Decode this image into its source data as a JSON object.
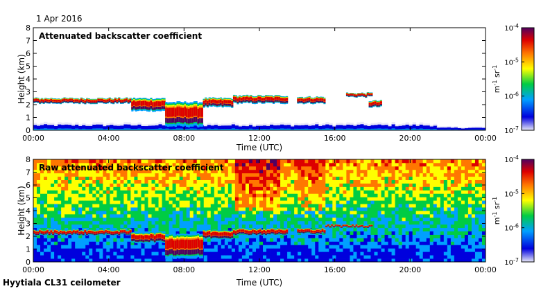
{
  "header": {
    "date": "1 Apr 2016",
    "site": "Hyytiala CL31 ceilometer"
  },
  "colorbar": {
    "tick_labels": [
      "10-4",
      "10-5",
      "10-6",
      "10-7"
    ],
    "tick_base": "10",
    "tick_exponents": [
      "-4",
      "-5",
      "-6",
      "-7"
    ],
    "unit_label": "m-1 sr-1",
    "colors": [
      "#e8e8f8",
      "#0000dd",
      "#00a0ff",
      "#00cc44",
      "#ffff00",
      "#ff7700",
      "#dd0000",
      "#500060"
    ]
  },
  "chart_data": [
    {
      "type": "heatmap",
      "title": "Attenuated backscatter coefficient",
      "xlabel": "Time (UTC)",
      "ylabel": "Height (km)",
      "x_ticks": [
        "00:00",
        "04:00",
        "08:00",
        "12:00",
        "16:00",
        "20:00",
        "00:00"
      ],
      "y_ticks": [
        "0",
        "1",
        "2",
        "3",
        "4",
        "5",
        "6",
        "7",
        "8"
      ],
      "xlim": [
        0,
        24
      ],
      "ylim": [
        0,
        8
      ],
      "color_scale": "log",
      "clim": [
        1e-07,
        0.0001
      ],
      "cloud_layers": [
        {
          "t_start": 0.0,
          "t_end": 5.2,
          "base_km": 2.1,
          "top_km": 2.5
        },
        {
          "t_start": 5.2,
          "t_end": 7.0,
          "base_km": 1.5,
          "top_km": 2.5
        },
        {
          "t_start": 7.0,
          "t_end": 9.0,
          "base_km": 0.3,
          "top_km": 2.2
        },
        {
          "t_start": 9.0,
          "t_end": 10.6,
          "base_km": 1.8,
          "top_km": 2.5
        },
        {
          "t_start": 10.6,
          "t_end": 13.5,
          "base_km": 2.1,
          "top_km": 2.7
        },
        {
          "t_start": 14.0,
          "t_end": 15.5,
          "base_km": 2.1,
          "top_km": 2.6
        },
        {
          "t_start": 16.6,
          "t_end": 18.0,
          "base_km": 2.6,
          "top_km": 2.9
        },
        {
          "t_start": 17.8,
          "t_end": 18.5,
          "base_km": 1.8,
          "top_km": 2.3
        }
      ],
      "boundary_layer_top_km": 0.6
    },
    {
      "type": "heatmap",
      "title": "Raw attenuated backscatter coefficient",
      "xlabel": "Time (UTC)",
      "ylabel": "Height (km)",
      "x_ticks": [
        "00:00",
        "04:00",
        "08:00",
        "12:00",
        "16:00",
        "20:00",
        "00:00"
      ],
      "y_ticks": [
        "0",
        "1",
        "2",
        "3",
        "4",
        "5",
        "6",
        "7",
        "8"
      ],
      "xlim": [
        0,
        24
      ],
      "ylim": [
        0,
        8
      ],
      "color_scale": "log",
      "clim": [
        1e-07,
        0.0001
      ],
      "cloud_layers": [
        {
          "t_start": 0.0,
          "t_end": 5.2,
          "base_km": 2.1,
          "top_km": 2.5
        },
        {
          "t_start": 5.2,
          "t_end": 7.0,
          "base_km": 1.5,
          "top_km": 2.3
        },
        {
          "t_start": 7.0,
          "t_end": 9.0,
          "base_km": 0.3,
          "top_km": 2.2
        },
        {
          "t_start": 9.0,
          "t_end": 10.6,
          "base_km": 1.8,
          "top_km": 2.5
        },
        {
          "t_start": 10.6,
          "t_end": 13.5,
          "base_km": 2.1,
          "top_km": 2.6
        },
        {
          "t_start": 14.0,
          "t_end": 15.5,
          "base_km": 2.2,
          "top_km": 2.6
        },
        {
          "t_start": 15.5,
          "t_end": 18.0,
          "base_km": 2.7,
          "top_km": 2.9
        }
      ],
      "boundary_layer_top_km": 1.0
    }
  ]
}
